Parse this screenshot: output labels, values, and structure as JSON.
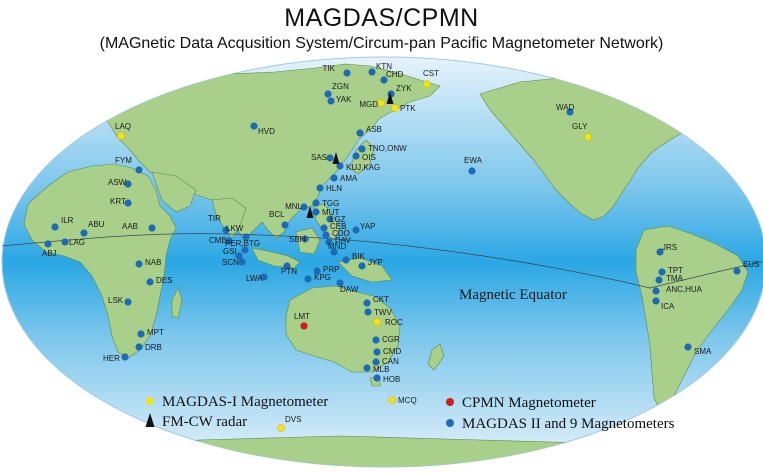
{
  "title": "MAGDAS/CPMN",
  "subtitle": "(MAGnetic Data Acqusition System/Circum-pan Pacific Magnetometer Network)",
  "equator_label": "Magnetic Equator",
  "colors": {
    "ocean_outer": "#e6f3fb",
    "ocean_mid": "#7cc6ec",
    "ocean_center": "#2aa7e4",
    "land": "#a8d08a",
    "land_stroke": "#5f8a4b",
    "magdas1": "#f2e21a",
    "cpmn": "#d41a1a",
    "magdas2": "#1e6bb5",
    "radar": "#111111"
  },
  "legend": [
    {
      "type": "magdas1",
      "label": "MAGDAS-I Magnetometer"
    },
    {
      "type": "radar",
      "label": "FM-CW radar"
    },
    {
      "type": "cpmn",
      "label": "CPMN Magnetometer"
    },
    {
      "type": "magdas2",
      "label": "MAGDAS II and 9 Magnetometers"
    }
  ],
  "stations": [
    {
      "code": "TIK",
      "type": "magdas2"
    },
    {
      "code": "KTN",
      "type": "magdas2"
    },
    {
      "code": "CHD",
      "type": "magdas2"
    },
    {
      "code": "CST",
      "type": "magdas1"
    },
    {
      "code": "ZGN",
      "type": "magdas2"
    },
    {
      "code": "ZYK",
      "type": "magdas2"
    },
    {
      "code": "YAK",
      "type": "magdas2"
    },
    {
      "code": "MGD",
      "type": "magdas1"
    },
    {
      "code": "PTK",
      "type": "magdas1"
    },
    {
      "code": "WAD",
      "type": "magdas2"
    },
    {
      "code": "GLY",
      "type": "magdas1"
    },
    {
      "code": "LAQ",
      "type": "magdas1"
    },
    {
      "code": "HVD",
      "type": "magdas2"
    },
    {
      "code": "ASB",
      "type": "magdas2"
    },
    {
      "code": "TNO,ONW",
      "type": "magdas2"
    },
    {
      "code": "OIS",
      "type": "magdas2"
    },
    {
      "code": "SAS",
      "type": "magdas2"
    },
    {
      "code": "KUJ,KAG",
      "type": "magdas2"
    },
    {
      "code": "AMA",
      "type": "magdas2"
    },
    {
      "code": "EWA",
      "type": "magdas2"
    },
    {
      "code": "FYM",
      "type": "magdas2"
    },
    {
      "code": "HLN",
      "type": "magdas2"
    },
    {
      "code": "ASW",
      "type": "magdas2"
    },
    {
      "code": "KRT",
      "type": "magdas2"
    },
    {
      "code": "TGG",
      "type": "magdas2"
    },
    {
      "code": "MNL",
      "type": "magdas2"
    },
    {
      "code": "MUT",
      "type": "magdas2"
    },
    {
      "code": "LGZ",
      "type": "magdas2"
    },
    {
      "code": "ILR",
      "type": "magdas2"
    },
    {
      "code": "ABU",
      "type": "magdas2"
    },
    {
      "code": "AAB",
      "type": "magdas2"
    },
    {
      "code": "TIR",
      "type": "magdas2"
    },
    {
      "code": "BCL",
      "type": "magdas2"
    },
    {
      "code": "CEB",
      "type": "magdas2"
    },
    {
      "code": "CDO",
      "type": "magdas2"
    },
    {
      "code": "YAP",
      "type": "magdas2"
    },
    {
      "code": "LKW",
      "type": "magdas2"
    },
    {
      "code": "DAV",
      "type": "magdas2"
    },
    {
      "code": "CMB",
      "type": "magdas2"
    },
    {
      "code": "SBH",
      "type": "magdas2"
    },
    {
      "code": "LAG",
      "type": "magdas2"
    },
    {
      "code": "ABJ",
      "type": "magdas2"
    },
    {
      "code": "PER,BTG",
      "type": "magdas2"
    },
    {
      "code": "GSI",
      "type": "magdas2"
    },
    {
      "code": "MND",
      "type": "magdas2"
    },
    {
      "code": "SCN",
      "type": "magdas2"
    },
    {
      "code": "BIK",
      "type": "magdas2"
    },
    {
      "code": "JYP",
      "type": "magdas2"
    },
    {
      "code": "NAB",
      "type": "magdas2"
    },
    {
      "code": "PTN",
      "type": "magdas2"
    },
    {
      "code": "PRP",
      "type": "magdas2"
    },
    {
      "code": "KPG",
      "type": "magdas2"
    },
    {
      "code": "LWA",
      "type": "magdas2"
    },
    {
      "code": "DES",
      "type": "magdas2"
    },
    {
      "code": "DAW",
      "type": "magdas2"
    },
    {
      "code": "JRS",
      "type": "magdas2"
    },
    {
      "code": "TPT",
      "type": "magdas2"
    },
    {
      "code": "EUS",
      "type": "magdas2"
    },
    {
      "code": "TMA",
      "type": "magdas2"
    },
    {
      "code": "ANC,HUA",
      "type": "magdas2"
    },
    {
      "code": "LSK",
      "type": "magdas2"
    },
    {
      "code": "CKT",
      "type": "magdas2"
    },
    {
      "code": "ICA",
      "type": "magdas2"
    },
    {
      "code": "TWV",
      "type": "magdas2"
    },
    {
      "code": "LMT",
      "type": "cpmn"
    },
    {
      "code": "ROC",
      "type": "magdas1"
    },
    {
      "code": "MPT",
      "type": "magdas2"
    },
    {
      "code": "CGR",
      "type": "magdas2"
    },
    {
      "code": "DRB",
      "type": "magdas2"
    },
    {
      "code": "SMA",
      "type": "magdas2"
    },
    {
      "code": "CMD",
      "type": "magdas2"
    },
    {
      "code": "HER",
      "type": "magdas2"
    },
    {
      "code": "CAN",
      "type": "magdas2"
    },
    {
      "code": "MLB",
      "type": "magdas2"
    },
    {
      "code": "HOB",
      "type": "magdas2"
    },
    {
      "code": "MCQ",
      "type": "magdas1"
    },
    {
      "code": "DVS",
      "type": "magdas1"
    }
  ],
  "radars": [
    "MGD",
    "SAS",
    "MNL"
  ]
}
